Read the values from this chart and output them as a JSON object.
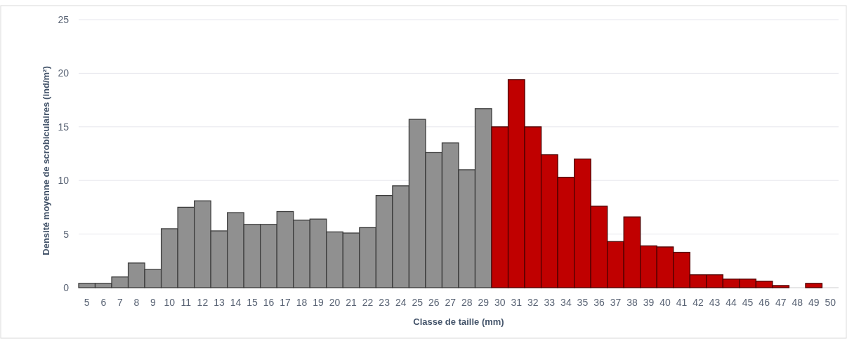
{
  "chart_data": {
    "type": "bar",
    "xlabel": "Classe de taille (mm)",
    "ylabel": "Densité moyenne de scrobiculaires (ind/m²)",
    "categories": [
      "5",
      "6",
      "7",
      "8",
      "9",
      "10",
      "11",
      "12",
      "13",
      "14",
      "15",
      "16",
      "17",
      "18",
      "19",
      "20",
      "21",
      "22",
      "23",
      "24",
      "25",
      "26",
      "27",
      "28",
      "29",
      "30",
      "31",
      "32",
      "33",
      "34",
      "35",
      "36",
      "37",
      "38",
      "39",
      "40",
      "41",
      "42",
      "43",
      "44",
      "45",
      "46",
      "47",
      "48",
      "49",
      "50"
    ],
    "values": [
      0.4,
      0.4,
      1.0,
      2.3,
      1.7,
      5.5,
      7.5,
      8.1,
      5.3,
      7.0,
      5.9,
      5.9,
      7.1,
      6.3,
      6.4,
      5.2,
      5.1,
      5.6,
      8.6,
      9.5,
      15.7,
      12.6,
      13.5,
      11.0,
      16.7,
      15.0,
      19.4,
      15.0,
      12.4,
      10.3,
      12.0,
      7.6,
      4.3,
      6.6,
      3.9,
      3.8,
      3.3,
      1.2,
      1.2,
      0.8,
      0.8,
      0.6,
      0.2,
      0,
      0.4,
      null
    ],
    "colors": [
      "#909090",
      "#909090",
      "#909090",
      "#909090",
      "#909090",
      "#909090",
      "#909090",
      "#909090",
      "#909090",
      "#909090",
      "#909090",
      "#909090",
      "#909090",
      "#909090",
      "#909090",
      "#909090",
      "#909090",
      "#909090",
      "#909090",
      "#909090",
      "#909090",
      "#909090",
      "#909090",
      "#909090",
      "#909090",
      "#c00000",
      "#c00000",
      "#c00000",
      "#c00000",
      "#c00000",
      "#c00000",
      "#c00000",
      "#c00000",
      "#c00000",
      "#c00000",
      "#c00000",
      "#c00000",
      "#c00000",
      "#c00000",
      "#c00000",
      "#c00000",
      "#c00000",
      "#c00000",
      "#c00000",
      "#c00000",
      "#c00000"
    ],
    "ylim": [
      0,
      25
    ],
    "yticks": [
      0,
      5,
      10,
      15,
      20,
      25
    ],
    "grid": "y"
  }
}
